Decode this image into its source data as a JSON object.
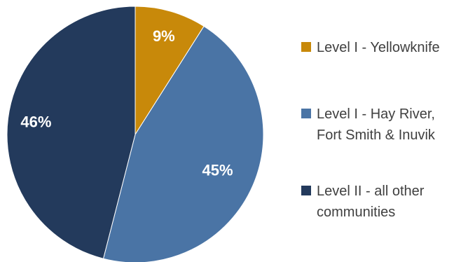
{
  "chart_data": {
    "type": "pie",
    "title": "",
    "categories": [
      "Level I - Yellowknife",
      "Level I - Hay River,\nFort Smith & Inuvik",
      "Level II - all other\ncommunities"
    ],
    "values": [
      9,
      45,
      46
    ],
    "data_labels": [
      "9%",
      "45%",
      "46%"
    ],
    "colors": [
      "#C8890A",
      "#4A74A5",
      "#233A5C"
    ],
    "start_angle": "12 o'clock",
    "direction": "clockwise",
    "legend": "right"
  }
}
